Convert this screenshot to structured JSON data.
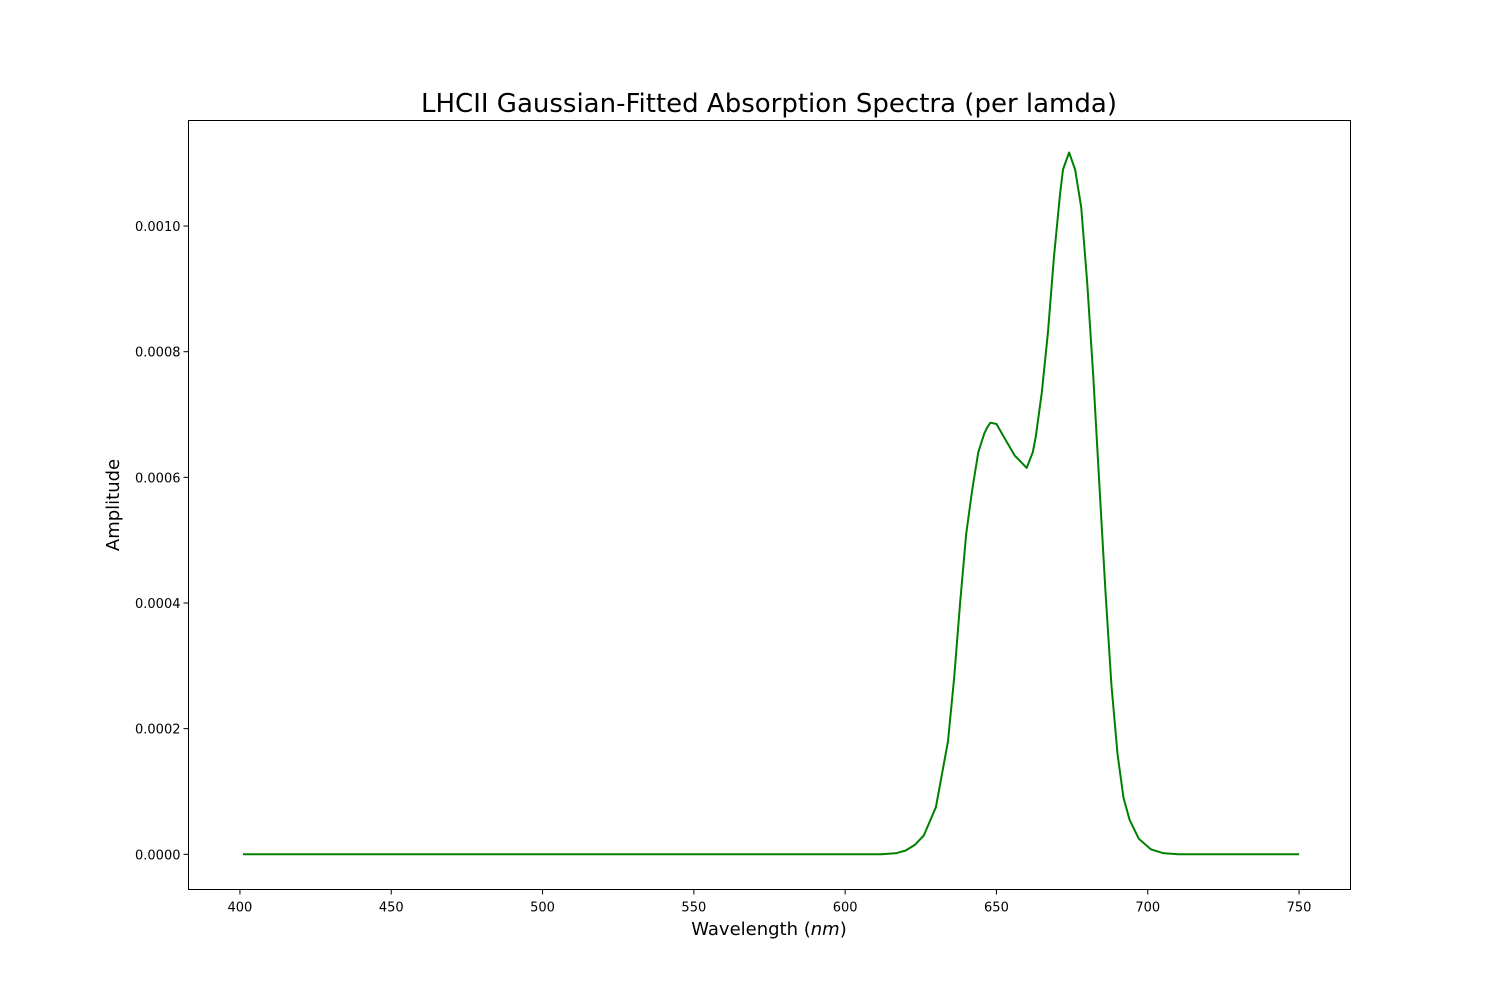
{
  "chart_data": {
    "type": "line",
    "title": "LHCII Gaussian-Fitted Absorption Spectra (per lamda)",
    "xlabel_text": "Wavelength (",
    "xlabel_unit": "nm",
    "xlabel_close": ")",
    "ylabel": "Amplitude",
    "xlim": [
      383,
      767
    ],
    "ylim": [
      -5.6e-05,
      0.001168
    ],
    "x_ticks": [
      400,
      450,
      500,
      550,
      600,
      650,
      700,
      750
    ],
    "x_tick_labels": [
      "400",
      "450",
      "500",
      "550",
      "600",
      "650",
      "700",
      "750"
    ],
    "y_ticks": [
      0.0,
      0.0002,
      0.0004,
      0.0006,
      0.0008,
      0.001
    ],
    "y_tick_labels": [
      "0.0000",
      "0.0002",
      "0.0004",
      "0.0006",
      "0.0008",
      "0.0010"
    ],
    "grid": false,
    "series": [
      {
        "color": "#008000",
        "x": [
          401,
          500,
          600,
          612,
          617,
          620,
          623,
          626,
          630,
          634,
          636,
          638,
          640,
          642,
          644,
          646,
          647,
          648,
          650,
          653,
          656,
          660,
          662,
          663,
          665,
          667,
          669,
          671,
          672,
          674,
          676,
          678,
          680,
          682,
          684,
          686,
          688,
          690,
          692,
          694,
          697,
          701,
          705,
          710,
          720,
          750
        ],
        "y": [
          0.0,
          0.0,
          0.0,
          0.0,
          2e-06,
          6e-06,
          1.5e-05,
          3e-05,
          7.5e-05,
          0.00018,
          0.00028,
          0.0004,
          0.00051,
          0.00058,
          0.00064,
          0.00067,
          0.00068,
          0.000687,
          0.000685,
          0.00066,
          0.000635,
          0.000615,
          0.00064,
          0.000665,
          0.000735,
          0.00083,
          0.00095,
          0.00105,
          0.00109,
          0.001117,
          0.00109,
          0.00103,
          0.00091,
          0.00076,
          0.00059,
          0.00042,
          0.00027,
          0.00016,
          9e-05,
          5.5e-05,
          2.5e-05,
          8e-06,
          2e-06,
          0.0,
          0.0,
          0.0
        ]
      }
    ]
  }
}
